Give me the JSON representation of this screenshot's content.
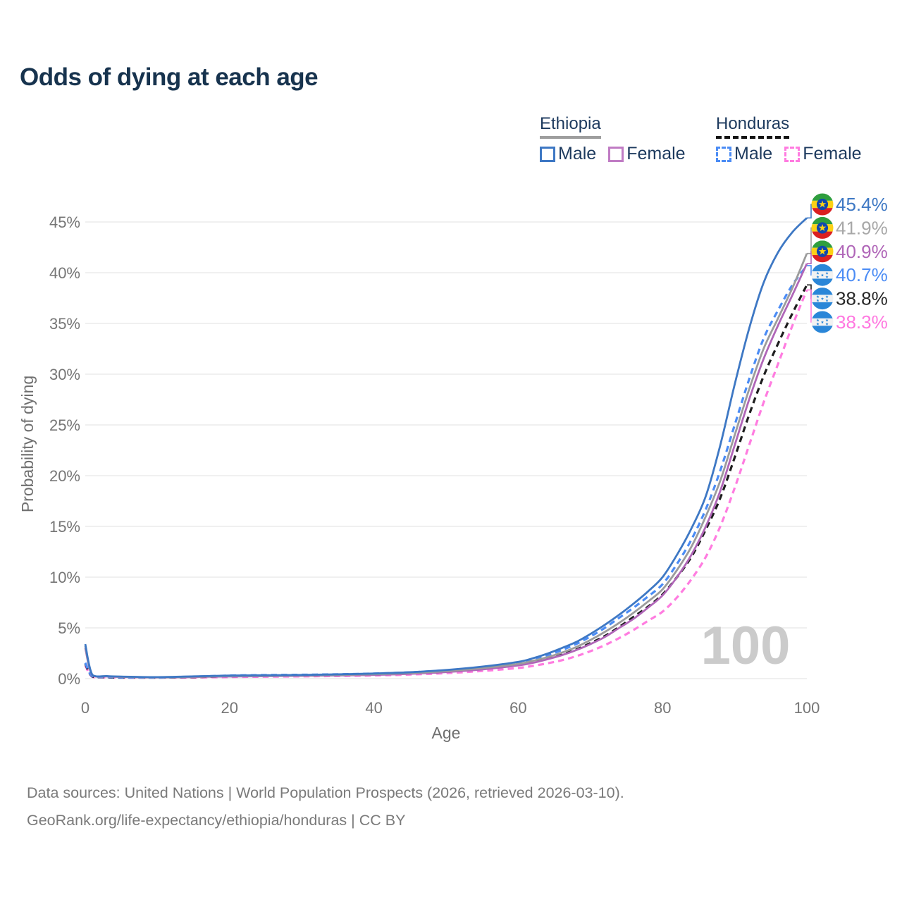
{
  "title": "Odds of dying at each age",
  "legend": {
    "groups": [
      {
        "name": "Ethiopia",
        "line_style": "solid",
        "line_color": "#9e9e9e",
        "items": [
          {
            "label": "Male",
            "color": "#3e78c4",
            "style": "solid"
          },
          {
            "label": "Female",
            "color": "#c07cc4",
            "style": "solid"
          }
        ]
      },
      {
        "name": "Honduras",
        "line_style": "dashed",
        "line_color": "#141414",
        "items": [
          {
            "label": "Male",
            "color": "#4b8cf5",
            "style": "dashed"
          },
          {
            "label": "Female",
            "color": "#ff7ce0",
            "style": "dashed"
          }
        ]
      }
    ]
  },
  "chart_data": {
    "type": "line",
    "title": "Odds of dying at each age",
    "xlabel": "Age",
    "ylabel": "Probability of dying",
    "xlim": [
      0,
      100
    ],
    "ylim_percent": [
      0,
      47
    ],
    "x_ticks": [
      0,
      20,
      40,
      60,
      80,
      100
    ],
    "y_ticks_percent": [
      0,
      5,
      10,
      15,
      20,
      25,
      30,
      35,
      40,
      45
    ],
    "grid": "horizontal",
    "legend_position": "top-right",
    "watermark": "100",
    "ages": [
      0,
      1,
      3,
      5,
      10,
      15,
      20,
      25,
      30,
      35,
      40,
      45,
      50,
      55,
      60,
      62,
      64,
      66,
      68,
      70,
      72,
      74,
      76,
      78,
      80,
      82,
      84,
      86,
      88,
      90,
      92,
      94,
      96,
      98,
      100
    ],
    "series": [
      {
        "name": "Ethiopia Male",
        "country": "Ethiopia",
        "sex": "Male",
        "flag": "ET",
        "color": "#3e78c4",
        "label_color": "#3e78c4",
        "dash": false,
        "end_value": 45.4,
        "end_label": "45.4%",
        "values": [
          3.4,
          0.35,
          0.25,
          0.2,
          0.15,
          0.22,
          0.3,
          0.33,
          0.36,
          0.42,
          0.5,
          0.63,
          0.85,
          1.18,
          1.65,
          2.0,
          2.45,
          3.0,
          3.6,
          4.4,
          5.3,
          6.3,
          7.4,
          8.6,
          10.0,
          12.2,
          14.8,
          18.0,
          23.0,
          29.0,
          34.5,
          39.0,
          42.0,
          44.0,
          45.4
        ]
      },
      {
        "name": "Ethiopia",
        "country": "Ethiopia",
        "sex": "Both",
        "flag": "ET",
        "color": "#9c9c9c",
        "label_color": "#a8a8a8",
        "dash": false,
        "end_value": 41.9,
        "end_label": "41.9%",
        "values": [
          3.2,
          0.33,
          0.23,
          0.18,
          0.13,
          0.19,
          0.25,
          0.28,
          0.31,
          0.36,
          0.43,
          0.55,
          0.74,
          1.03,
          1.45,
          1.75,
          2.1,
          2.55,
          3.1,
          3.8,
          4.6,
          5.5,
          6.5,
          7.6,
          8.8,
          10.7,
          13.0,
          16.0,
          19.5,
          24.0,
          28.5,
          32.5,
          35.5,
          38.5,
          41.9
        ]
      },
      {
        "name": "Ethiopia Female",
        "country": "Ethiopia",
        "sex": "Female",
        "flag": "ET",
        "color": "#b066b8",
        "label_color": "#b066b8",
        "dash": false,
        "end_value": 40.9,
        "end_label": "40.9%",
        "values": [
          3.0,
          0.3,
          0.21,
          0.17,
          0.12,
          0.16,
          0.21,
          0.24,
          0.27,
          0.31,
          0.37,
          0.47,
          0.64,
          0.9,
          1.3,
          1.55,
          1.9,
          2.3,
          2.8,
          3.4,
          4.1,
          5.0,
          5.9,
          7.0,
          8.2,
          10.0,
          12.2,
          15.0,
          18.5,
          23.0,
          27.5,
          31.5,
          34.8,
          37.8,
          40.9
        ]
      },
      {
        "name": "Honduras Male",
        "country": "Honduras",
        "sex": "Male",
        "flag": "HN",
        "color": "#4b8cf5",
        "label_color": "#4b8cf5",
        "dash": true,
        "end_value": 40.7,
        "end_label": "40.7%",
        "values": [
          1.55,
          0.22,
          0.16,
          0.12,
          0.1,
          0.19,
          0.3,
          0.35,
          0.38,
          0.43,
          0.5,
          0.62,
          0.82,
          1.12,
          1.55,
          1.9,
          2.3,
          2.8,
          3.4,
          4.15,
          5.0,
          6.0,
          7.0,
          8.1,
          9.3,
          11.3,
          13.7,
          16.7,
          20.5,
          25.0,
          29.5,
          33.5,
          36.3,
          38.8,
          40.7
        ]
      },
      {
        "name": "Honduras",
        "country": "Honduras",
        "sex": "Both",
        "flag": "HN",
        "color": "#1e1e1e",
        "label_color": "#262626",
        "dash": true,
        "end_value": 38.8,
        "end_label": "38.8%",
        "values": [
          1.45,
          0.19,
          0.13,
          0.1,
          0.09,
          0.15,
          0.23,
          0.27,
          0.3,
          0.34,
          0.4,
          0.5,
          0.67,
          0.95,
          1.35,
          1.6,
          1.95,
          2.35,
          2.85,
          3.5,
          4.2,
          5.1,
          6.1,
          7.1,
          8.3,
          10.0,
          12.0,
          14.7,
          17.8,
          21.8,
          26.0,
          29.8,
          33.0,
          36.0,
          38.8
        ]
      },
      {
        "name": "Honduras Female",
        "country": "Honduras",
        "sex": "Female",
        "flag": "HN",
        "color": "#ff7ce0",
        "label_color": "#ff77e0",
        "dash": true,
        "end_value": 38.3,
        "end_label": "38.3%",
        "values": [
          1.3,
          0.17,
          0.12,
          0.09,
          0.08,
          0.11,
          0.16,
          0.19,
          0.22,
          0.26,
          0.31,
          0.4,
          0.54,
          0.75,
          1.05,
          1.25,
          1.5,
          1.8,
          2.2,
          2.7,
          3.3,
          4.0,
          4.8,
          5.7,
          6.6,
          8.0,
          9.8,
          12.0,
          15.0,
          18.8,
          23.0,
          27.2,
          31.0,
          34.8,
          38.3
        ]
      }
    ],
    "flag_colors": {
      "ethiopia_green": "#2f9e3e",
      "ethiopia_yellow": "#fcd116",
      "ethiopia_red": "#da2021",
      "ethiopia_blue": "#0f47af",
      "honduras_blue": "#2a86d8",
      "honduras_white": "#f2f2f2"
    }
  },
  "colors": {
    "title": "#17334e",
    "grid": "#e7e7e7",
    "tick_text": "#767676",
    "axis_title": "#6f6f6f",
    "watermark": "#cbcbcb",
    "legend_text": "#1d3a5e",
    "footer": "#7a7a7a"
  },
  "footer": {
    "line1": "Data sources: United Nations | World Population Prospects (2026, retrieved 2026-03-10).",
    "line2": "GeoRank.org/life-expectancy/ethiopia/honduras | CC BY"
  }
}
